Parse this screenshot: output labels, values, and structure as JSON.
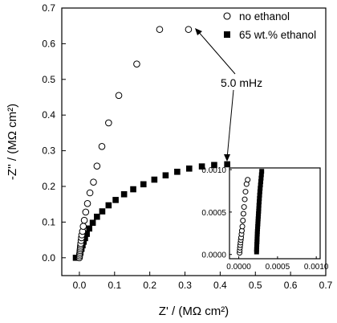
{
  "chart_data": {
    "type": "scatter",
    "xlabel": "Z' / (MΩ cm²)",
    "ylabel": "-Z'' / (MΩ cm²)",
    "xlim": [
      -0.05,
      0.7
    ],
    "ylim": [
      -0.05,
      0.7
    ],
    "xticks": [
      "0.0",
      "0.1",
      "0.2",
      "0.3",
      "0.4",
      "0.5",
      "0.6",
      "0.7"
    ],
    "yticks": [
      "0.0",
      "0.1",
      "0.2",
      "0.3",
      "0.4",
      "0.5",
      "0.6",
      "0.7"
    ],
    "legend_position": "top-right",
    "series": [
      {
        "name": "no ethanol",
        "marker": "open-circle",
        "x": [
          0.0,
          0.0005,
          0.001,
          0.0015,
          0.002,
          0.0025,
          0.003,
          0.0035,
          0.004,
          0.005,
          0.006,
          0.007,
          0.009,
          0.011,
          0.014,
          0.018,
          0.023,
          0.03,
          0.04,
          0.05,
          0.064,
          0.083,
          0.112,
          0.163,
          0.228,
          0.31
        ],
        "y": [
          0.0,
          0.005,
          0.01,
          0.015,
          0.02,
          0.025,
          0.03,
          0.035,
          0.04,
          0.048,
          0.056,
          0.064,
          0.074,
          0.088,
          0.105,
          0.128,
          0.152,
          0.182,
          0.212,
          0.257,
          0.312,
          0.378,
          0.455,
          0.543,
          0.64,
          0.64
        ]
      },
      {
        "name": "65 wt.% ethanol",
        "marker": "filled-square",
        "x": [
          -0.01,
          0.0,
          0.003,
          0.006,
          0.009,
          0.012,
          0.016,
          0.021,
          0.028,
          0.038,
          0.05,
          0.065,
          0.083,
          0.103,
          0.127,
          0.153,
          0.182,
          0.213,
          0.245,
          0.278,
          0.312,
          0.348,
          0.383,
          0.42
        ],
        "y": [
          0.0,
          0.005,
          0.015,
          0.025,
          0.035,
          0.045,
          0.055,
          0.067,
          0.082,
          0.098,
          0.115,
          0.13,
          0.147,
          0.162,
          0.178,
          0.192,
          0.206,
          0.219,
          0.231,
          0.241,
          0.25,
          0.256,
          0.26,
          0.262
        ]
      }
    ],
    "annotation": {
      "text": "5.0 mHz",
      "points_to": [
        [
          0.31,
          0.64
        ],
        [
          0.42,
          0.262
        ]
      ]
    },
    "inset": {
      "xlim": [
        -0.00012,
        0.00105
      ],
      "ylim": [
        -5e-05,
        0.00102
      ],
      "xticks": [
        "0.0000",
        "0.0005",
        "0.0010"
      ],
      "yticks": [
        "0.0000",
        "0.0005",
        "0.0010"
      ],
      "series": [
        {
          "name": "no ethanol",
          "marker": "open-circle",
          "x": [
            1e-05,
            1.2e-05,
            1.5e-05,
            1.8e-05,
            2.2e-05,
            2.6e-05,
            3e-05,
            3.5e-05,
            4e-05,
            4.6e-05,
            5.3e-05,
            6e-05,
            6.8e-05,
            7.7e-05,
            8.7e-05,
            0.0001,
            0.000115
          ],
          "y": [
            2e-05,
            5e-05,
            8e-05,
            0.00011,
            0.00014,
            0.00017,
            0.0002,
            0.00024,
            0.00028,
            0.00033,
            0.0004,
            0.00048,
            0.00056,
            0.00065,
            0.00074,
            0.00083,
            0.00088
          ]
        },
        {
          "name": "65 wt.% ethanol",
          "marker": "filled-square",
          "x": [
            0.00023,
            0.00023,
            0.000232,
            0.000233,
            0.000235,
            0.000236,
            0.000237,
            0.000239,
            0.00024,
            0.000242,
            0.000244,
            0.000246,
            0.000248,
            0.00025,
            0.000252,
            0.000254,
            0.000256,
            0.000258,
            0.00026,
            0.000263,
            0.000266,
            0.000269,
            0.000272,
            0.000276,
            0.00028,
            0.000284,
            0.000288,
            0.000292,
            0.000296
          ],
          "y": [
            3e-05,
            6e-05,
            9e-05,
            0.00012,
            0.00015,
            0.00018,
            0.00021,
            0.00024,
            0.00027,
            0.0003,
            0.00033,
            0.00036,
            0.00039,
            0.00042,
            0.00045,
            0.00048,
            0.00051,
            0.00054,
            0.00058,
            0.00062,
            0.00066,
            0.0007,
            0.00074,
            0.00078,
            0.00082,
            0.00086,
            0.0009,
            0.00094,
            0.00098
          ]
        }
      ]
    }
  }
}
